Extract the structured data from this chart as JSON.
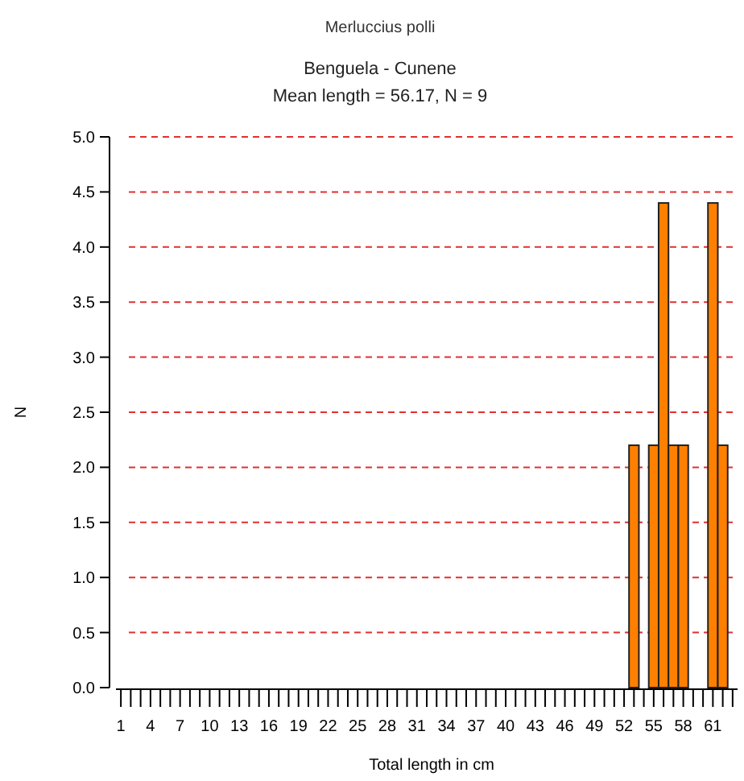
{
  "chart_data": {
    "type": "histogram",
    "title": "Merluccius polli",
    "subtitle": "Benguela - Cunene\nMean length = 56.17, N = 9",
    "xlabel": "Total length in cm",
    "ylabel": "N",
    "bins": [
      52.5,
      53.5,
      54.5,
      55.5,
      56.5,
      57.5,
      58.5,
      59.5,
      60.5,
      61.5,
      62.5
    ],
    "values": [
      2.2,
      0,
      2.2,
      4.4,
      2.2,
      2.2,
      0,
      0,
      4.4,
      2.2
    ],
    "color": "#ff8000",
    "xlim": [
      0.5,
      63.5
    ],
    "xticks": [
      1,
      {
        "value": 2,
        "label": null
      },
      {
        "value": 3,
        "label": null
      },
      4,
      {
        "value": 5,
        "label": null
      },
      {
        "value": 6,
        "label": null
      },
      7,
      {
        "value": 8,
        "label": null
      },
      {
        "value": 9,
        "label": null
      },
      10,
      {
        "value": 11,
        "label": null
      },
      {
        "value": 12,
        "label": null
      },
      13,
      {
        "value": 14,
        "label": null
      },
      {
        "value": 15,
        "label": null
      },
      16,
      {
        "value": 17,
        "label": null
      },
      {
        "value": 18,
        "label": null
      },
      19,
      {
        "value": 20,
        "label": null
      },
      {
        "value": 21,
        "label": null
      },
      22,
      {
        "value": 23,
        "label": null
      },
      {
        "value": 24,
        "label": null
      },
      25,
      {
        "value": 26,
        "label": null
      },
      {
        "value": 27,
        "label": null
      },
      28,
      {
        "value": 29,
        "label": null
      },
      {
        "value": 30,
        "label": null
      },
      31,
      {
        "value": 32,
        "label": null
      },
      {
        "value": 33,
        "label": null
      },
      34,
      {
        "value": 35,
        "label": null
      },
      {
        "value": 36,
        "label": null
      },
      37,
      {
        "value": 38,
        "label": null
      },
      {
        "value": 39,
        "label": null
      },
      40,
      {
        "value": 41,
        "label": null
      },
      {
        "value": 42,
        "label": null
      },
      43,
      {
        "value": 44,
        "label": null
      },
      {
        "value": 45,
        "label": null
      },
      46,
      {
        "value": 47,
        "label": null
      },
      {
        "value": 48,
        "label": null
      },
      49,
      {
        "value": 50,
        "label": null
      },
      {
        "value": 51,
        "label": null
      },
      52,
      {
        "value": 53,
        "label": null
      },
      {
        "value": 54,
        "label": null
      },
      55,
      {
        "value": 56,
        "label": null
      },
      {
        "value": 57,
        "label": null
      },
      58,
      {
        "value": 59,
        "label": null
      },
      {
        "value": 60,
        "label": null
      },
      61,
      {
        "value": 62,
        "label": null
      },
      {
        "value": 63,
        "label": null
      }
    ],
    "ylim": [
      0,
      5
    ],
    "yticks": [
      {
        "value": 0,
        "label": "0.0"
      },
      {
        "value": 0.5,
        "label": "0.5"
      },
      {
        "value": 1,
        "label": "1.0"
      },
      {
        "value": 1.5,
        "label": "1.5"
      },
      {
        "value": 2,
        "label": "2.0"
      },
      {
        "value": 2.5,
        "label": "2.5"
      },
      {
        "value": 3,
        "label": "3.0"
      },
      {
        "value": 3.5,
        "label": "3.5"
      },
      {
        "value": 4,
        "label": "4.0"
      },
      {
        "value": 4.5,
        "label": "4.5"
      },
      {
        "value": 5,
        "label": "5.0"
      }
    ],
    "grid": "y",
    "line_style": "dashed"
  }
}
